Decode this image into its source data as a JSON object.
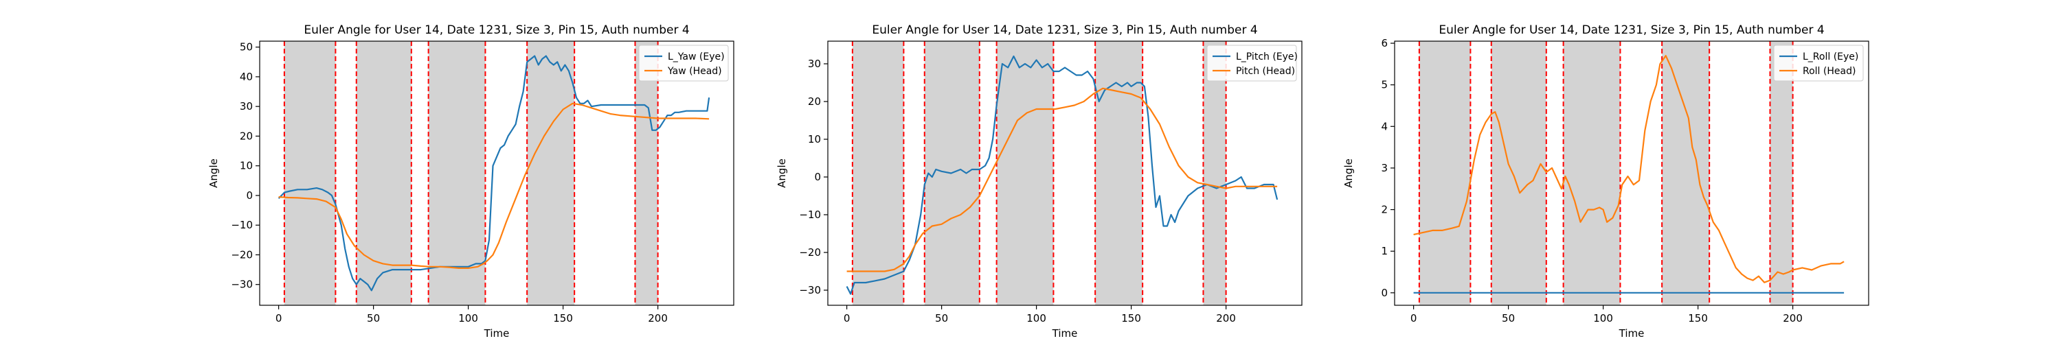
{
  "figure": {
    "panels_count": 3
  },
  "chart_data": [
    {
      "type": "line",
      "title": "Euler Angle for User 14, Date 1231, Size 3, Pin 15, Auth number 4",
      "xlabel": "Time",
      "ylabel": "Angle",
      "xlim": [
        -10,
        240
      ],
      "ylim": [
        -37,
        52
      ],
      "xticks": [
        0,
        50,
        100,
        150,
        200
      ],
      "yticks": [
        -30,
        -20,
        -10,
        0,
        10,
        20,
        30,
        40,
        50
      ],
      "grid": false,
      "legend": "top-right",
      "shaded_intervals": [
        [
          3,
          30
        ],
        [
          41,
          70
        ],
        [
          79,
          109
        ],
        [
          131,
          156
        ],
        [
          188,
          200
        ]
      ],
      "interval_line_color": "#ff0000",
      "shade_color": "#d3d3d3",
      "series": [
        {
          "name": "L_Yaw (Eye)",
          "color": "#1f77b4",
          "x": [
            0,
            3,
            6,
            10,
            15,
            20,
            23,
            26,
            28,
            30,
            33,
            35,
            37,
            39,
            41,
            43,
            45,
            47,
            49,
            52,
            55,
            60,
            65,
            70,
            75,
            80,
            85,
            90,
            95,
            100,
            104,
            107,
            109,
            111,
            113,
            115,
            117,
            119,
            121,
            123,
            125,
            127,
            129,
            131,
            133,
            135,
            137,
            139,
            141,
            143,
            145,
            147,
            149,
            151,
            153,
            155,
            157,
            159,
            161,
            163,
            165,
            170,
            175,
            180,
            185,
            190,
            193,
            195,
            197,
            199,
            201,
            203,
            205,
            207,
            209,
            211,
            215,
            220,
            225,
            226,
            227
          ],
          "values": [
            -1,
            1,
            1.5,
            2,
            2,
            2.5,
            2,
            1,
            0,
            -3,
            -10,
            -18,
            -24,
            -28,
            -30,
            -28,
            -29,
            -30,
            -32,
            -28,
            -26,
            -25,
            -25,
            -25,
            -25,
            -24.5,
            -24,
            -24,
            -24,
            -24,
            -23,
            -23,
            -22,
            -15,
            10,
            13,
            16,
            17,
            20,
            22,
            24,
            30,
            35,
            45,
            46,
            47,
            44,
            46,
            47,
            45,
            44,
            45,
            42,
            44,
            42,
            38,
            33,
            31,
            31,
            32,
            30,
            30.5,
            30.5,
            30.5,
            30.5,
            30.5,
            30.5,
            29.5,
            22,
            22,
            23,
            25,
            27,
            27,
            28,
            28,
            28.5,
            28.5,
            28.5,
            28.5,
            33
          ]
        },
        {
          "name": "Yaw (Head)",
          "color": "#ff7f0e",
          "x": [
            0,
            5,
            10,
            15,
            20,
            25,
            30,
            33,
            36,
            40,
            45,
            50,
            55,
            60,
            65,
            70,
            75,
            80,
            85,
            90,
            95,
            100,
            105,
            108,
            110,
            113,
            116,
            120,
            125,
            130,
            135,
            140,
            145,
            150,
            155,
            160,
            165,
            170,
            175,
            180,
            190,
            200,
            210,
            220,
            227
          ],
          "values": [
            -0.5,
            -0.7,
            -0.8,
            -1,
            -1.2,
            -2,
            -4,
            -8,
            -13,
            -17,
            -20,
            -22,
            -23,
            -23.5,
            -23.5,
            -23.5,
            -23.8,
            -24,
            -24,
            -24.2,
            -24.5,
            -24.5,
            -24,
            -23,
            -22,
            -20,
            -16,
            -9,
            -1,
            7,
            14,
            20,
            25,
            29,
            31,
            30.5,
            29.5,
            28.5,
            27.5,
            27,
            26.5,
            26,
            26,
            26,
            25.8
          ]
        }
      ]
    },
    {
      "type": "line",
      "title": "Euler Angle for User 14, Date 1231, Size 3, Pin 15, Auth number 4",
      "xlabel": "Time",
      "ylabel": "Angle",
      "xlim": [
        -10,
        240
      ],
      "ylim": [
        -34,
        36
      ],
      "xticks": [
        0,
        50,
        100,
        150,
        200
      ],
      "yticks": [
        -30,
        -20,
        -10,
        0,
        10,
        20,
        30
      ],
      "grid": false,
      "legend": "top-right",
      "shaded_intervals": [
        [
          3,
          30
        ],
        [
          41,
          70
        ],
        [
          79,
          109
        ],
        [
          131,
          156
        ],
        [
          188,
          200
        ]
      ],
      "interval_line_color": "#ff0000",
      "shade_color": "#d3d3d3",
      "series": [
        {
          "name": "L_Pitch (Eye)",
          "color": "#1f77b4",
          "x": [
            0,
            2,
            4,
            6,
            10,
            15,
            20,
            25,
            30,
            33,
            36,
            39,
            41,
            43,
            45,
            47,
            50,
            55,
            60,
            63,
            66,
            70,
            73,
            75,
            77,
            79,
            82,
            85,
            88,
            91,
            94,
            97,
            100,
            103,
            106,
            109,
            112,
            115,
            118,
            121,
            124,
            127,
            130,
            133,
            136,
            139,
            142,
            145,
            148,
            150,
            153,
            155,
            157,
            159,
            161,
            163,
            165,
            167,
            169,
            171,
            173,
            175,
            180,
            185,
            190,
            195,
            200,
            205,
            208,
            211,
            215,
            220,
            225,
            227
          ],
          "values": [
            -29,
            -31,
            -28,
            -28,
            -28,
            -27.5,
            -27,
            -26,
            -25,
            -22,
            -18,
            -10,
            -2,
            1,
            0,
            2,
            1.5,
            1,
            2,
            1,
            2,
            2,
            3,
            5,
            10,
            19,
            30,
            29,
            32,
            29,
            30,
            29,
            31,
            29,
            30,
            28,
            28,
            29,
            28,
            27,
            27,
            28,
            26,
            20,
            23,
            24,
            25,
            24,
            25,
            24,
            25,
            25,
            24,
            16,
            3,
            -8,
            -5,
            -13,
            -13,
            -10,
            -12,
            -9,
            -5,
            -3,
            -2,
            -3,
            -2,
            -1,
            0,
            -3,
            -3,
            -2,
            -2,
            -6
          ]
        },
        {
          "name": "Pitch (Head)",
          "color": "#ff7f0e",
          "x": [
            0,
            5,
            10,
            15,
            20,
            25,
            30,
            33,
            36,
            40,
            45,
            50,
            55,
            60,
            65,
            70,
            75,
            80,
            85,
            90,
            95,
            100,
            105,
            110,
            115,
            120,
            125,
            130,
            135,
            140,
            145,
            150,
            155,
            160,
            165,
            170,
            175,
            180,
            185,
            190,
            195,
            200,
            205,
            210,
            220,
            227
          ],
          "values": [
            -25,
            -25,
            -25,
            -25,
            -25,
            -24.5,
            -23,
            -21,
            -18,
            -15,
            -13,
            -12.5,
            -11,
            -10,
            -8,
            -5,
            0,
            5,
            10,
            15,
            17,
            18,
            18,
            18,
            18.5,
            19,
            20,
            22,
            23.5,
            23,
            22.5,
            22,
            21,
            18,
            14,
            8,
            3,
            0,
            -1.5,
            -2,
            -2.5,
            -3,
            -2.5,
            -2.5,
            -2.5,
            -2.5
          ]
        }
      ]
    },
    {
      "type": "line",
      "title": "Euler Angle for User 14, Date 1231, Size 3, Pin 15, Auth number 4",
      "xlabel": "Time",
      "ylabel": "Angle",
      "xlim": [
        -10,
        240
      ],
      "ylim": [
        -0.3,
        6.05
      ],
      "xticks": [
        0,
        50,
        100,
        150,
        200
      ],
      "yticks": [
        0,
        1,
        2,
        3,
        4,
        5,
        6
      ],
      "grid": false,
      "legend": "top-right",
      "shaded_intervals": [
        [
          3,
          30
        ],
        [
          41,
          70
        ],
        [
          79,
          109
        ],
        [
          131,
          156
        ],
        [
          188,
          200
        ]
      ],
      "interval_line_color": "#ff0000",
      "shade_color": "#d3d3d3",
      "series": [
        {
          "name": "L_Roll (Eye)",
          "color": "#1f77b4",
          "x": [
            0,
            227
          ],
          "values": [
            0,
            0
          ]
        },
        {
          "name": "Roll (Head)",
          "color": "#ff7f0e",
          "x": [
            0,
            5,
            10,
            15,
            20,
            24,
            28,
            32,
            35,
            38,
            41,
            43,
            45,
            47,
            50,
            53,
            56,
            60,
            63,
            65,
            67,
            70,
            73,
            75,
            78,
            80,
            82,
            85,
            88,
            92,
            95,
            98,
            100,
            102,
            105,
            108,
            110,
            113,
            116,
            119,
            122,
            125,
            128,
            130,
            133,
            136,
            139,
            142,
            145,
            147,
            149,
            151,
            153,
            155,
            158,
            161,
            164,
            167,
            170,
            173,
            176,
            179,
            182,
            185,
            188,
            190,
            192,
            195,
            198,
            200,
            205,
            210,
            215,
            220,
            225,
            227
          ],
          "values": [
            1.4,
            1.45,
            1.5,
            1.5,
            1.55,
            1.6,
            2.2,
            3.2,
            3.8,
            4.1,
            4.3,
            4.35,
            4.1,
            3.7,
            3.1,
            2.8,
            2.4,
            2.6,
            2.7,
            2.9,
            3.1,
            2.9,
            3.0,
            2.8,
            2.5,
            2.8,
            2.6,
            2.2,
            1.7,
            2.0,
            2.0,
            2.05,
            2.0,
            1.7,
            1.8,
            2.1,
            2.6,
            2.8,
            2.6,
            2.7,
            3.9,
            4.6,
            5.0,
            5.5,
            5.7,
            5.4,
            5.0,
            4.6,
            4.2,
            3.5,
            3.2,
            2.6,
            2.3,
            2.1,
            1.7,
            1.5,
            1.2,
            0.9,
            0.6,
            0.45,
            0.35,
            0.3,
            0.4,
            0.25,
            0.3,
            0.4,
            0.5,
            0.45,
            0.5,
            0.55,
            0.6,
            0.55,
            0.65,
            0.7,
            0.7,
            0.75
          ]
        }
      ]
    }
  ]
}
